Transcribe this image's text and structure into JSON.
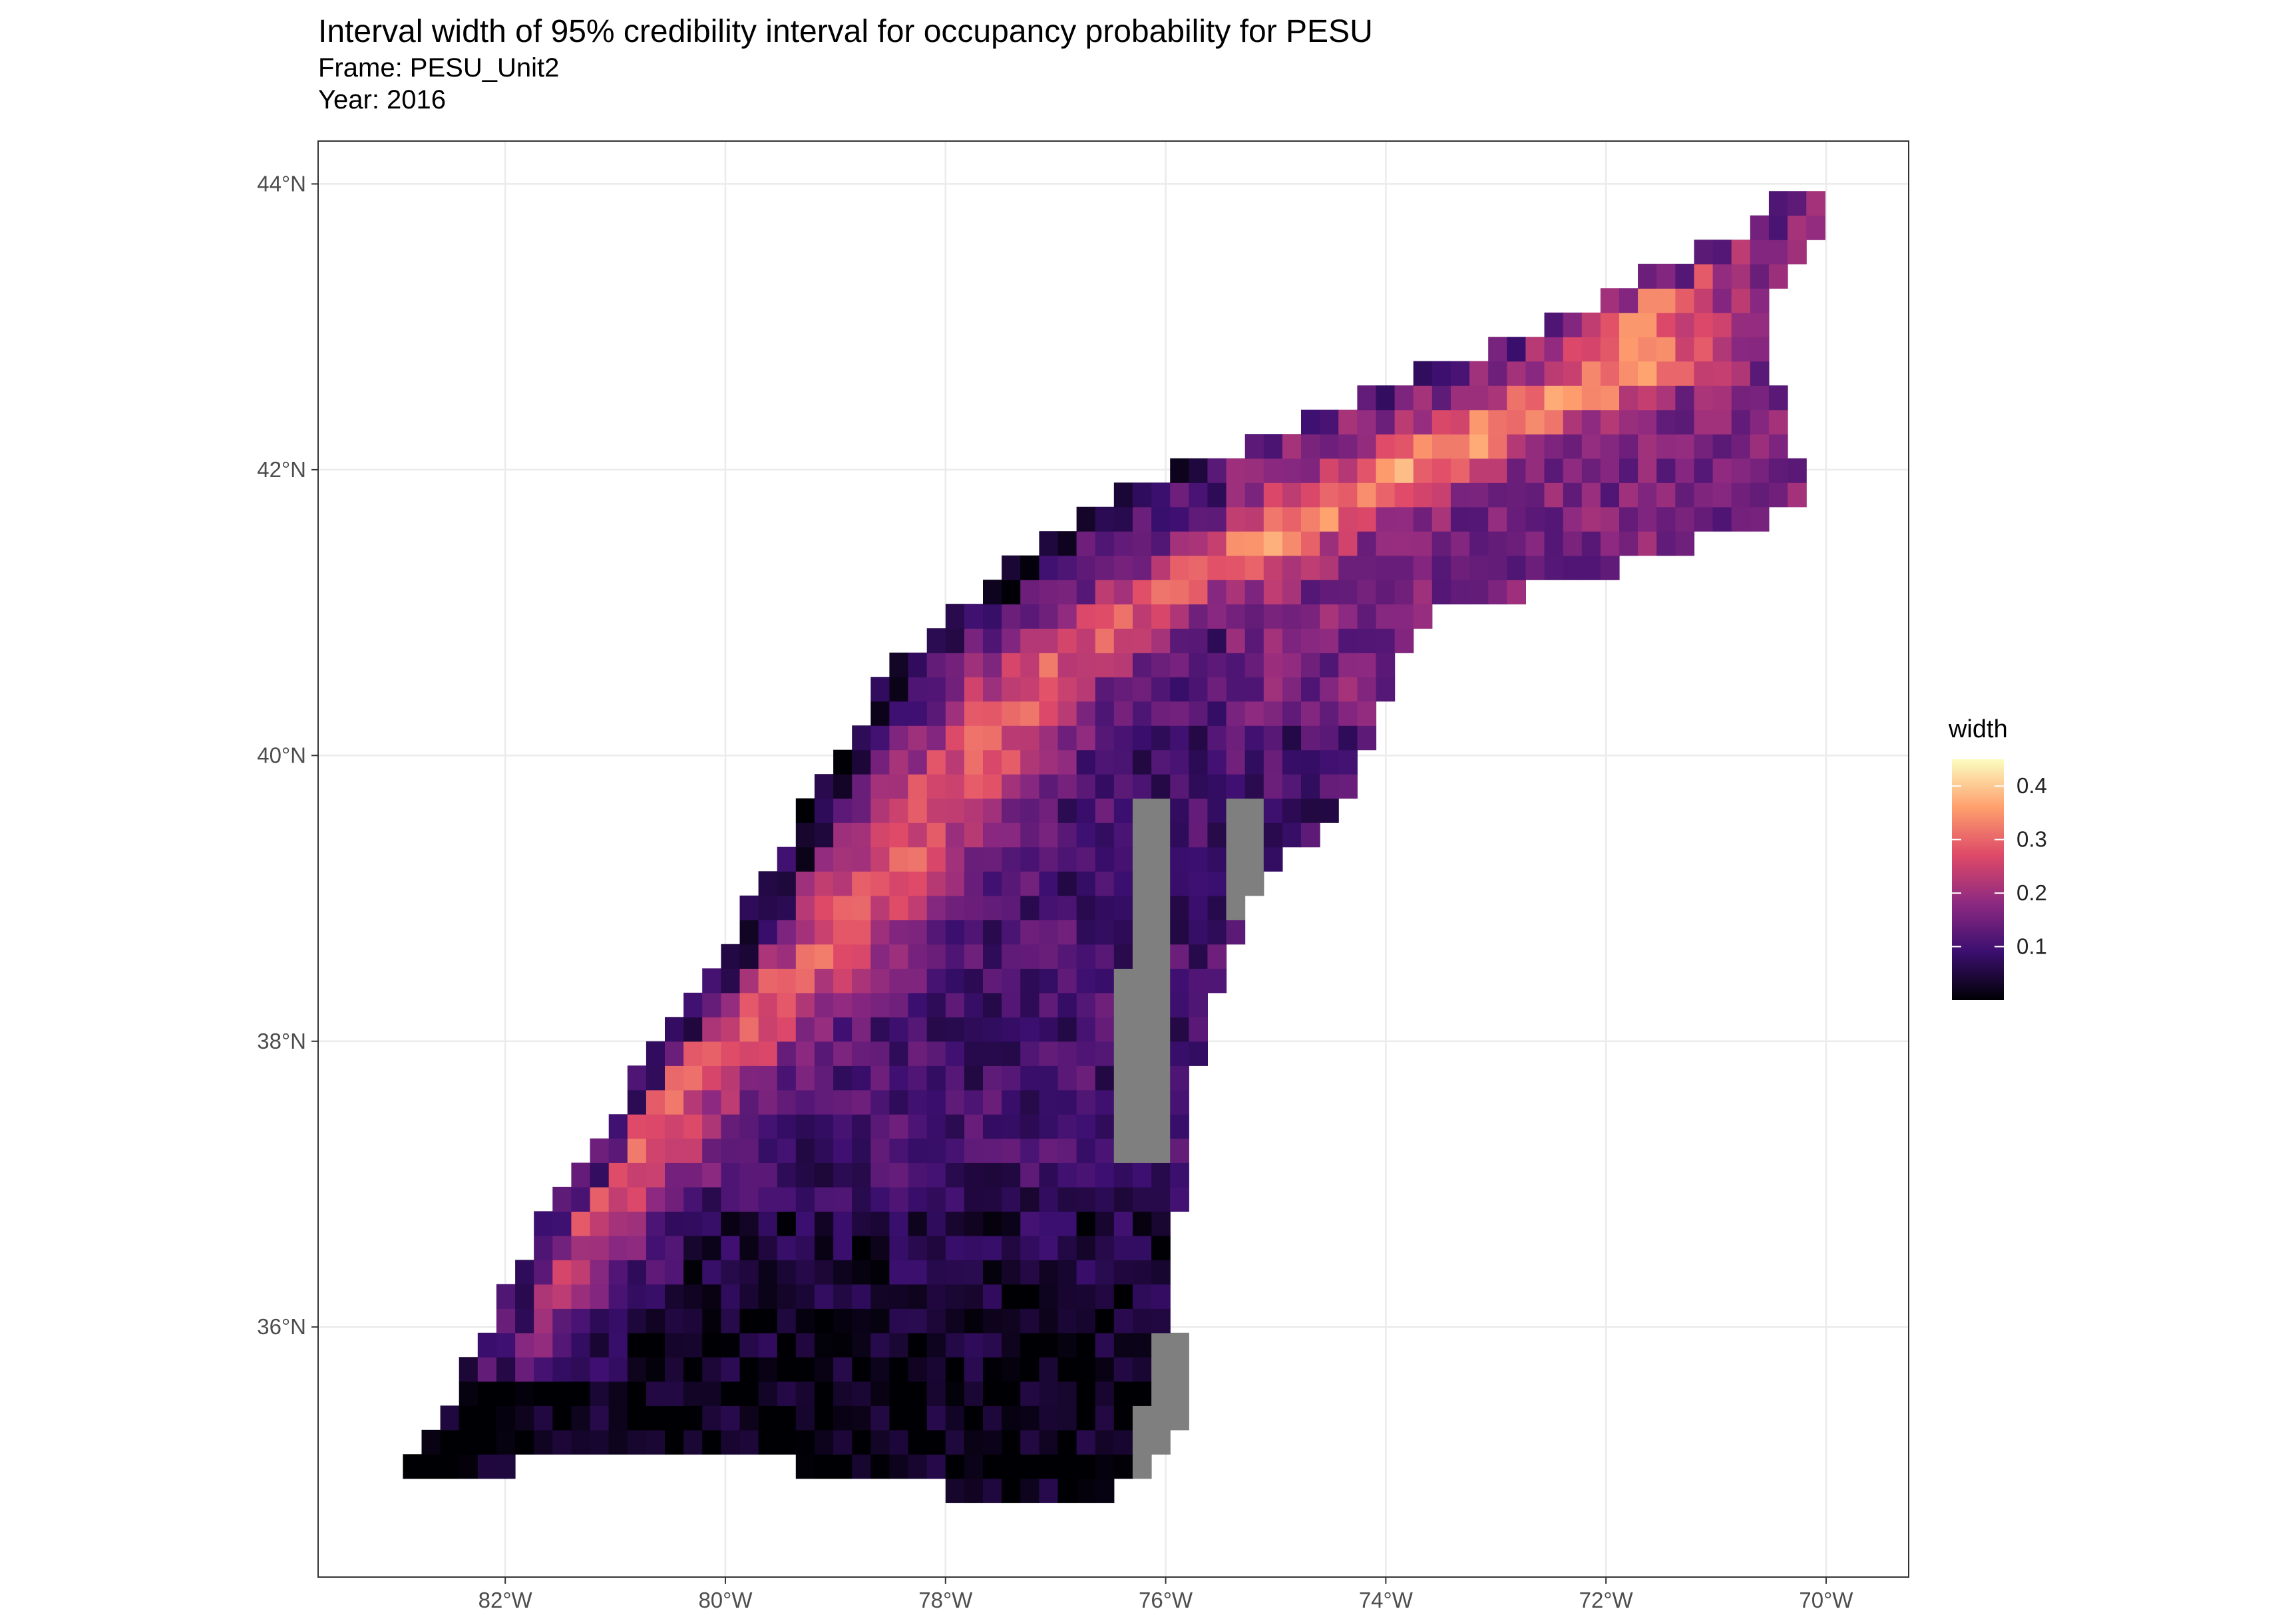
{
  "title": "Interval width of 95% credibility interval for occupancy probability for PESU",
  "subtitle_frame": "Frame: PESU_Unit2",
  "subtitle_year": "Year: 2016",
  "colors": {
    "panel_border": "#333333",
    "gridline": "#ebebeb",
    "na_cell": "#7f7f7f",
    "palette": [
      "#000004",
      "#3b0f70",
      "#8c2981",
      "#de4968",
      "#fe9f6d",
      "#fcfdbf"
    ]
  },
  "chart_data": {
    "type": "heatmap",
    "map_type": "gridded occupancy-width map",
    "x_ticks": [
      "82°W",
      "80°W",
      "78°W",
      "76°W",
      "74°W",
      "72°W",
      "70°W"
    ],
    "x_tick_values": [
      -82,
      -80,
      -78,
      -76,
      -74,
      -72,
      -70
    ],
    "y_ticks": [
      "36°N",
      "38°N",
      "40°N",
      "42°N",
      "44°N"
    ],
    "y_tick_values": [
      36,
      38,
      40,
      42,
      44
    ],
    "xlim": [
      -83.7,
      -69.25
    ],
    "ylim": [
      34.25,
      44.3
    ],
    "grid": true,
    "legend": {
      "title": "width",
      "position": "right",
      "labels": [
        "0.1",
        "0.2",
        "0.3",
        "0.4"
      ],
      "values": [
        0.1,
        0.2,
        0.3,
        0.4
      ],
      "range": [
        0.0,
        0.45
      ],
      "na_color_shown": "gray"
    },
    "regions_approx": [
      {
        "name": "southern low-uncertainty block",
        "width_approx": 0.02
      },
      {
        "name": "central diagonal high-uncertainty band",
        "width_approx": 0.28
      },
      {
        "name": "northwest edge band",
        "width_approx": 0.08
      },
      {
        "name": "northeast mixed region",
        "width_approx": 0.2
      }
    ]
  }
}
